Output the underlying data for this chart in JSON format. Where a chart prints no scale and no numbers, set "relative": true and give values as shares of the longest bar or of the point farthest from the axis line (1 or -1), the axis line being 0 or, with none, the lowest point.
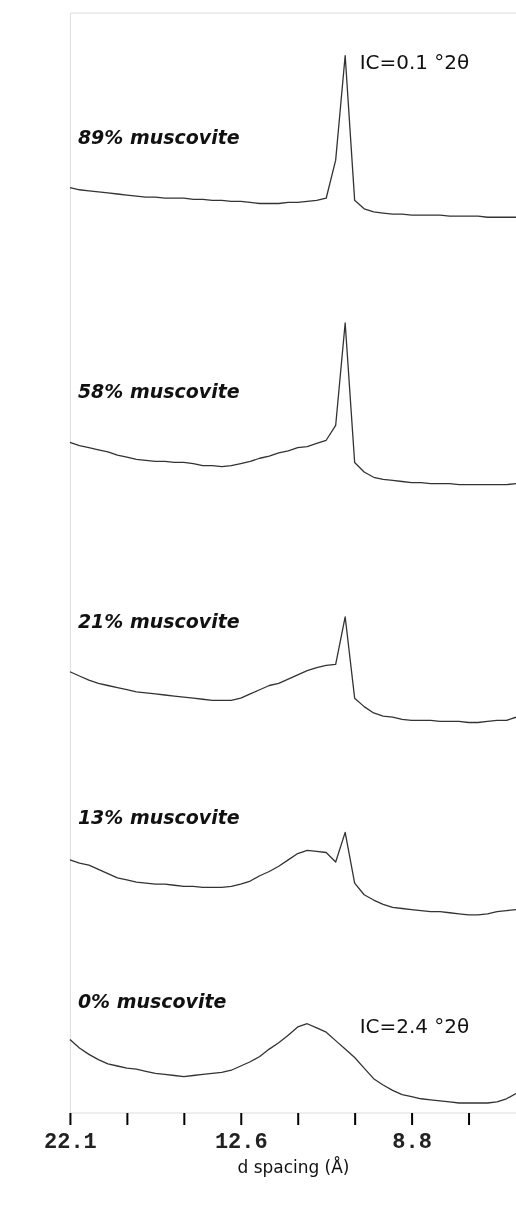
{
  "chart_data": {
    "type": "line",
    "relative": true,
    "xlabel": "d spacing (Å)",
    "categories": [
      "22.1",
      null,
      null,
      null,
      null,
      null,
      null,
      null,
      null,
      null,
      null,
      null,
      null,
      null,
      null,
      null,
      null,
      null,
      "12.6",
      null,
      null,
      null,
      null,
      null,
      null,
      null,
      null,
      null,
      null,
      null,
      null,
      null,
      null,
      null,
      null,
      null,
      "8.8",
      null,
      null,
      null,
      null,
      null,
      null,
      null,
      null,
      null,
      null,
      null
    ],
    "series": [
      {
        "name": "89% muscovite",
        "color": "#333333",
        "values": [
          0.875,
          0.873,
          0.872,
          0.871,
          0.87,
          0.869,
          0.868,
          0.867,
          0.866,
          0.866,
          0.865,
          0.865,
          0.865,
          0.864,
          0.864,
          0.863,
          0.863,
          0.862,
          0.862,
          0.861,
          0.86,
          0.86,
          0.86,
          0.861,
          0.861,
          0.862,
          0.863,
          0.865,
          0.901,
          1.0,
          0.863,
          0.855,
          0.852,
          0.851,
          0.85,
          0.85,
          0.849,
          0.849,
          0.849,
          0.849,
          0.848,
          0.848,
          0.848,
          0.848,
          0.847,
          0.847,
          0.847,
          0.847
        ]
      },
      {
        "name": "58% muscovite",
        "color": "#333333",
        "values": [
          0.634,
          0.631,
          0.629,
          0.627,
          0.625,
          0.622,
          0.62,
          0.618,
          0.617,
          0.616,
          0.616,
          0.615,
          0.615,
          0.614,
          0.612,
          0.612,
          0.611,
          0.612,
          0.614,
          0.616,
          0.619,
          0.621,
          0.624,
          0.626,
          0.629,
          0.63,
          0.633,
          0.636,
          0.65,
          0.747,
          0.615,
          0.606,
          0.601,
          0.599,
          0.598,
          0.597,
          0.596,
          0.596,
          0.595,
          0.595,
          0.595,
          0.594,
          0.594,
          0.594,
          0.594,
          0.594,
          0.594,
          0.595
        ]
      },
      {
        "name": "21% muscovite",
        "color": "#333333",
        "values": [
          0.417,
          0.413,
          0.409,
          0.406,
          0.404,
          0.402,
          0.4,
          0.398,
          0.397,
          0.396,
          0.395,
          0.394,
          0.393,
          0.392,
          0.391,
          0.39,
          0.39,
          0.39,
          0.392,
          0.396,
          0.4,
          0.404,
          0.406,
          0.41,
          0.414,
          0.418,
          0.421,
          0.423,
          0.424,
          0.469,
          0.392,
          0.384,
          0.378,
          0.375,
          0.374,
          0.372,
          0.371,
          0.371,
          0.371,
          0.37,
          0.37,
          0.37,
          0.369,
          0.369,
          0.37,
          0.371,
          0.371,
          0.374
        ]
      },
      {
        "name": "13% muscovite",
        "color": "#333333",
        "values": [
          0.239,
          0.236,
          0.234,
          0.23,
          0.226,
          0.222,
          0.22,
          0.218,
          0.217,
          0.216,
          0.216,
          0.215,
          0.214,
          0.214,
          0.213,
          0.213,
          0.213,
          0.214,
          0.216,
          0.219,
          0.224,
          0.228,
          0.233,
          0.239,
          0.245,
          0.248,
          0.247,
          0.246,
          0.237,
          0.265,
          0.217,
          0.206,
          0.201,
          0.197,
          0.194,
          0.193,
          0.192,
          0.191,
          0.19,
          0.19,
          0.189,
          0.188,
          0.187,
          0.187,
          0.188,
          0.19,
          0.191,
          0.192
        ]
      },
      {
        "name": "0% muscovite",
        "color": "#333333",
        "values": [
          0.069,
          0.061,
          0.055,
          0.05,
          0.046,
          0.044,
          0.042,
          0.041,
          0.039,
          0.037,
          0.036,
          0.035,
          0.034,
          0.035,
          0.036,
          0.037,
          0.038,
          0.04,
          0.044,
          0.048,
          0.053,
          0.06,
          0.066,
          0.073,
          0.081,
          0.084,
          0.08,
          0.076,
          0.068,
          0.06,
          0.052,
          0.042,
          0.032,
          0.026,
          0.021,
          0.017,
          0.015,
          0.013,
          0.012,
          0.011,
          0.01,
          0.009,
          0.009,
          0.009,
          0.009,
          0.01,
          0.013,
          0.018
        ]
      }
    ],
    "annotations": [
      "IC=0.1 °2θ",
      "IC=2.4 °2θ"
    ],
    "grid": false
  }
}
